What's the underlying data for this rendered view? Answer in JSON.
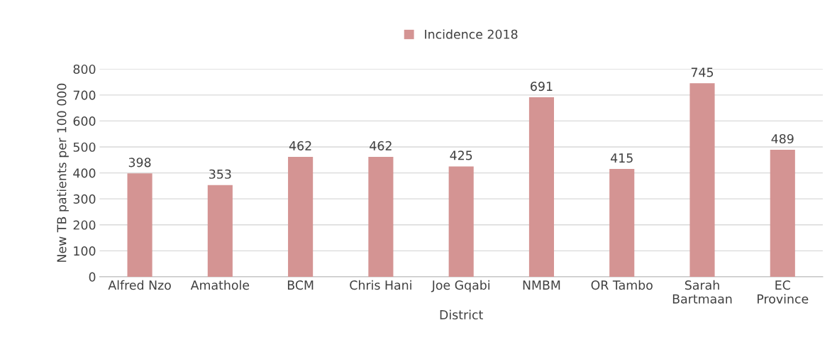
{
  "chart_data": {
    "type": "bar",
    "xlabel": "District",
    "ylabel": "New TB patients per 100 000",
    "categories": [
      "Alfred Nzo",
      "Amathole",
      "BCM",
      "Chris Hani",
      "Joe Gqabi",
      "NMBM",
      "OR Tambo",
      "Sarah Bartmaan",
      "EC Province"
    ],
    "series": [
      {
        "name": "Incidence 2018",
        "color": "#d49493",
        "values": [
          398,
          353,
          462,
          462,
          425,
          691,
          415,
          745,
          489
        ]
      }
    ],
    "ylim": [
      0,
      800
    ],
    "yticks": [
      0,
      100,
      200,
      300,
      400,
      500,
      600,
      700,
      800
    ],
    "grid": "y",
    "legend": "top",
    "data_labels": true
  }
}
